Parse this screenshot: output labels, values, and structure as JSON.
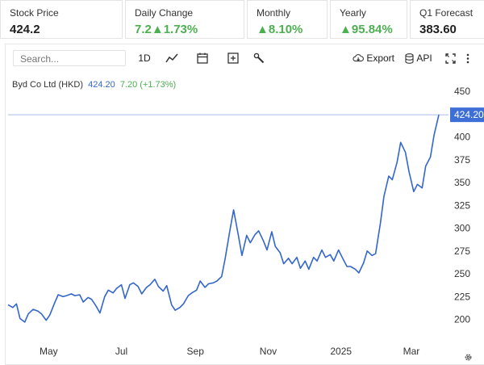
{
  "stats": [
    {
      "label": "Stock Price",
      "value": "424.2",
      "green": false
    },
    {
      "label": "Daily Change",
      "value": "7.2▲1.73%",
      "green": true
    },
    {
      "label": "Monthly",
      "value": "▲8.10%",
      "green": true
    },
    {
      "label": "Yearly",
      "value": "▲95.84%",
      "green": true
    },
    {
      "label": "Q1 Forecast",
      "value": "383.60",
      "green": false
    }
  ],
  "toolbar": {
    "search_placeholder": "Search...",
    "range_label": "1D",
    "export_label": "Export",
    "api_label": "API",
    "icons": [
      "line-chart-icon",
      "calendar-icon",
      "plus-box-icon",
      "wrench-icon",
      "cloud-download-icon",
      "database-icon",
      "fullscreen-icon",
      "more-vertical-icon",
      "gear-icon"
    ]
  },
  "legend": {
    "name": "Byd Co Ltd (HKD)",
    "price": "424.20",
    "change": "7.20 (+1.73%)"
  },
  "colors": {
    "line": "#3366cc",
    "up": "#4caf50",
    "price_tag": "#3d6fd6",
    "price_line": "#a9bde6"
  },
  "chart_data": {
    "type": "line",
    "title": "",
    "xlabel": "",
    "ylabel": "",
    "ylim": [
      180,
      460
    ],
    "y_ticks": [
      200,
      225,
      250,
      275,
      300,
      325,
      350,
      375,
      400,
      450
    ],
    "x_tick_labels": [
      "May",
      "Jul",
      "Sep",
      "Nov",
      "2025",
      "Mar"
    ],
    "x_tick_dates": [
      "2024-05-01",
      "2024-07-01",
      "2024-09-01",
      "2024-11-01",
      "2025-01-01",
      "2025-03-01"
    ],
    "last_price_label": "424.20",
    "series": [
      {
        "values": [
          [
            "2024-03-28",
            216
          ],
          [
            "2024-04-01",
            213
          ],
          [
            "2024-04-04",
            217
          ],
          [
            "2024-04-07",
            201
          ],
          [
            "2024-04-11",
            197
          ],
          [
            "2024-04-14",
            206
          ],
          [
            "2024-04-18",
            211
          ],
          [
            "2024-04-22",
            209
          ],
          [
            "2024-04-25",
            206
          ],
          [
            "2024-04-29",
            199
          ],
          [
            "2024-05-02",
            205
          ],
          [
            "2024-05-06",
            218
          ],
          [
            "2024-05-09",
            227
          ],
          [
            "2024-05-13",
            225
          ],
          [
            "2024-05-16",
            226
          ],
          [
            "2024-05-20",
            228
          ],
          [
            "2024-05-23",
            226
          ],
          [
            "2024-05-27",
            227
          ],
          [
            "2024-05-30",
            219
          ],
          [
            "2024-06-03",
            224
          ],
          [
            "2024-06-06",
            222
          ],
          [
            "2024-06-10",
            214
          ],
          [
            "2024-06-13",
            207
          ],
          [
            "2024-06-17",
            225
          ],
          [
            "2024-06-20",
            232
          ],
          [
            "2024-06-24",
            229
          ],
          [
            "2024-06-27",
            234
          ],
          [
            "2024-07-01",
            238
          ],
          [
            "2024-07-04",
            223
          ],
          [
            "2024-07-08",
            238
          ],
          [
            "2024-07-11",
            240
          ],
          [
            "2024-07-15",
            236
          ],
          [
            "2024-07-18",
            228
          ],
          [
            "2024-07-22",
            235
          ],
          [
            "2024-07-25",
            238
          ],
          [
            "2024-07-29",
            244
          ],
          [
            "2024-08-01",
            236
          ],
          [
            "2024-08-05",
            231
          ],
          [
            "2024-08-08",
            237
          ],
          [
            "2024-08-12",
            216
          ],
          [
            "2024-08-15",
            210
          ],
          [
            "2024-08-19",
            213
          ],
          [
            "2024-08-22",
            217
          ],
          [
            "2024-08-26",
            226
          ],
          [
            "2024-08-29",
            229
          ],
          [
            "2024-09-02",
            232
          ],
          [
            "2024-09-05",
            242
          ],
          [
            "2024-09-09",
            235
          ],
          [
            "2024-09-12",
            239
          ],
          [
            "2024-09-16",
            240
          ],
          [
            "2024-09-19",
            242
          ],
          [
            "2024-09-23",
            247
          ],
          [
            "2024-09-26",
            267
          ],
          [
            "2024-09-30",
            298
          ],
          [
            "2024-10-03",
            320
          ],
          [
            "2024-10-07",
            292
          ],
          [
            "2024-10-10",
            270
          ],
          [
            "2024-10-14",
            292
          ],
          [
            "2024-10-17",
            284
          ],
          [
            "2024-10-21",
            293
          ],
          [
            "2024-10-24",
            297
          ],
          [
            "2024-10-28",
            286
          ],
          [
            "2024-10-31",
            276
          ],
          [
            "2024-11-04",
            296
          ],
          [
            "2024-11-07",
            280
          ],
          [
            "2024-11-11",
            273
          ],
          [
            "2024-11-14",
            261
          ],
          [
            "2024-11-18",
            267
          ],
          [
            "2024-11-21",
            261
          ],
          [
            "2024-11-25",
            268
          ],
          [
            "2024-11-28",
            256
          ],
          [
            "2024-12-02",
            264
          ],
          [
            "2024-12-05",
            255
          ],
          [
            "2024-12-09",
            268
          ],
          [
            "2024-12-12",
            264
          ],
          [
            "2024-12-16",
            276
          ],
          [
            "2024-12-19",
            268
          ],
          [
            "2024-12-23",
            271
          ],
          [
            "2024-12-26",
            264
          ],
          [
            "2024-12-30",
            276
          ],
          [
            "2025-01-02",
            268
          ],
          [
            "2025-01-06",
            258
          ],
          [
            "2025-01-09",
            258
          ],
          [
            "2025-01-13",
            255
          ],
          [
            "2025-01-16",
            251
          ],
          [
            "2025-01-20",
            262
          ],
          [
            "2025-01-23",
            275
          ],
          [
            "2025-01-27",
            270
          ],
          [
            "2025-01-30",
            272
          ],
          [
            "2025-02-03",
            305
          ],
          [
            "2025-02-06",
            335
          ],
          [
            "2025-02-10",
            357
          ],
          [
            "2025-02-13",
            353
          ],
          [
            "2025-02-17",
            372
          ],
          [
            "2025-02-20",
            394
          ],
          [
            "2025-02-24",
            383
          ],
          [
            "2025-02-27",
            362
          ],
          [
            "2025-03-03",
            340
          ],
          [
            "2025-03-06",
            348
          ],
          [
            "2025-03-10",
            344
          ],
          [
            "2025-03-13",
            368
          ],
          [
            "2025-03-17",
            378
          ],
          [
            "2025-03-20",
            402
          ],
          [
            "2025-03-24",
            424.2
          ]
        ]
      }
    ]
  }
}
